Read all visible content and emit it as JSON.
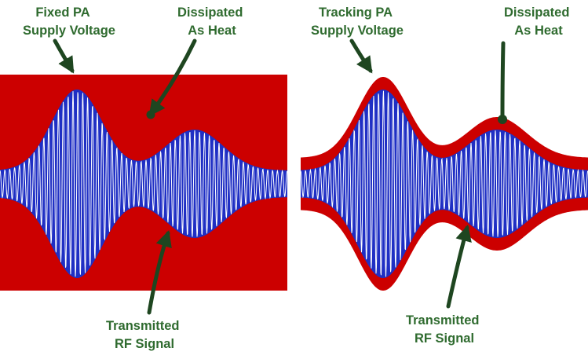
{
  "left_panel": {
    "supply_label": [
      "Fixed PA",
      "Supply Voltage"
    ],
    "heat_label": [
      "Dissipated",
      "As Heat"
    ],
    "signal_label": [
      "Transmitted",
      "RF Signal"
    ]
  },
  "right_panel": {
    "supply_label": [
      "Tracking PA",
      "Supply Voltage"
    ],
    "heat_label": [
      "Dissipated",
      "As Heat"
    ],
    "signal_label": [
      "Transmitted",
      "RF Signal"
    ]
  },
  "colors": {
    "supply_red": "#cc0000",
    "signal_blue": "#1f2fc4",
    "carrier_white": "#ffffff",
    "label_green": "#2f6b2f",
    "arrow_dark_green": "#1e4620"
  }
}
